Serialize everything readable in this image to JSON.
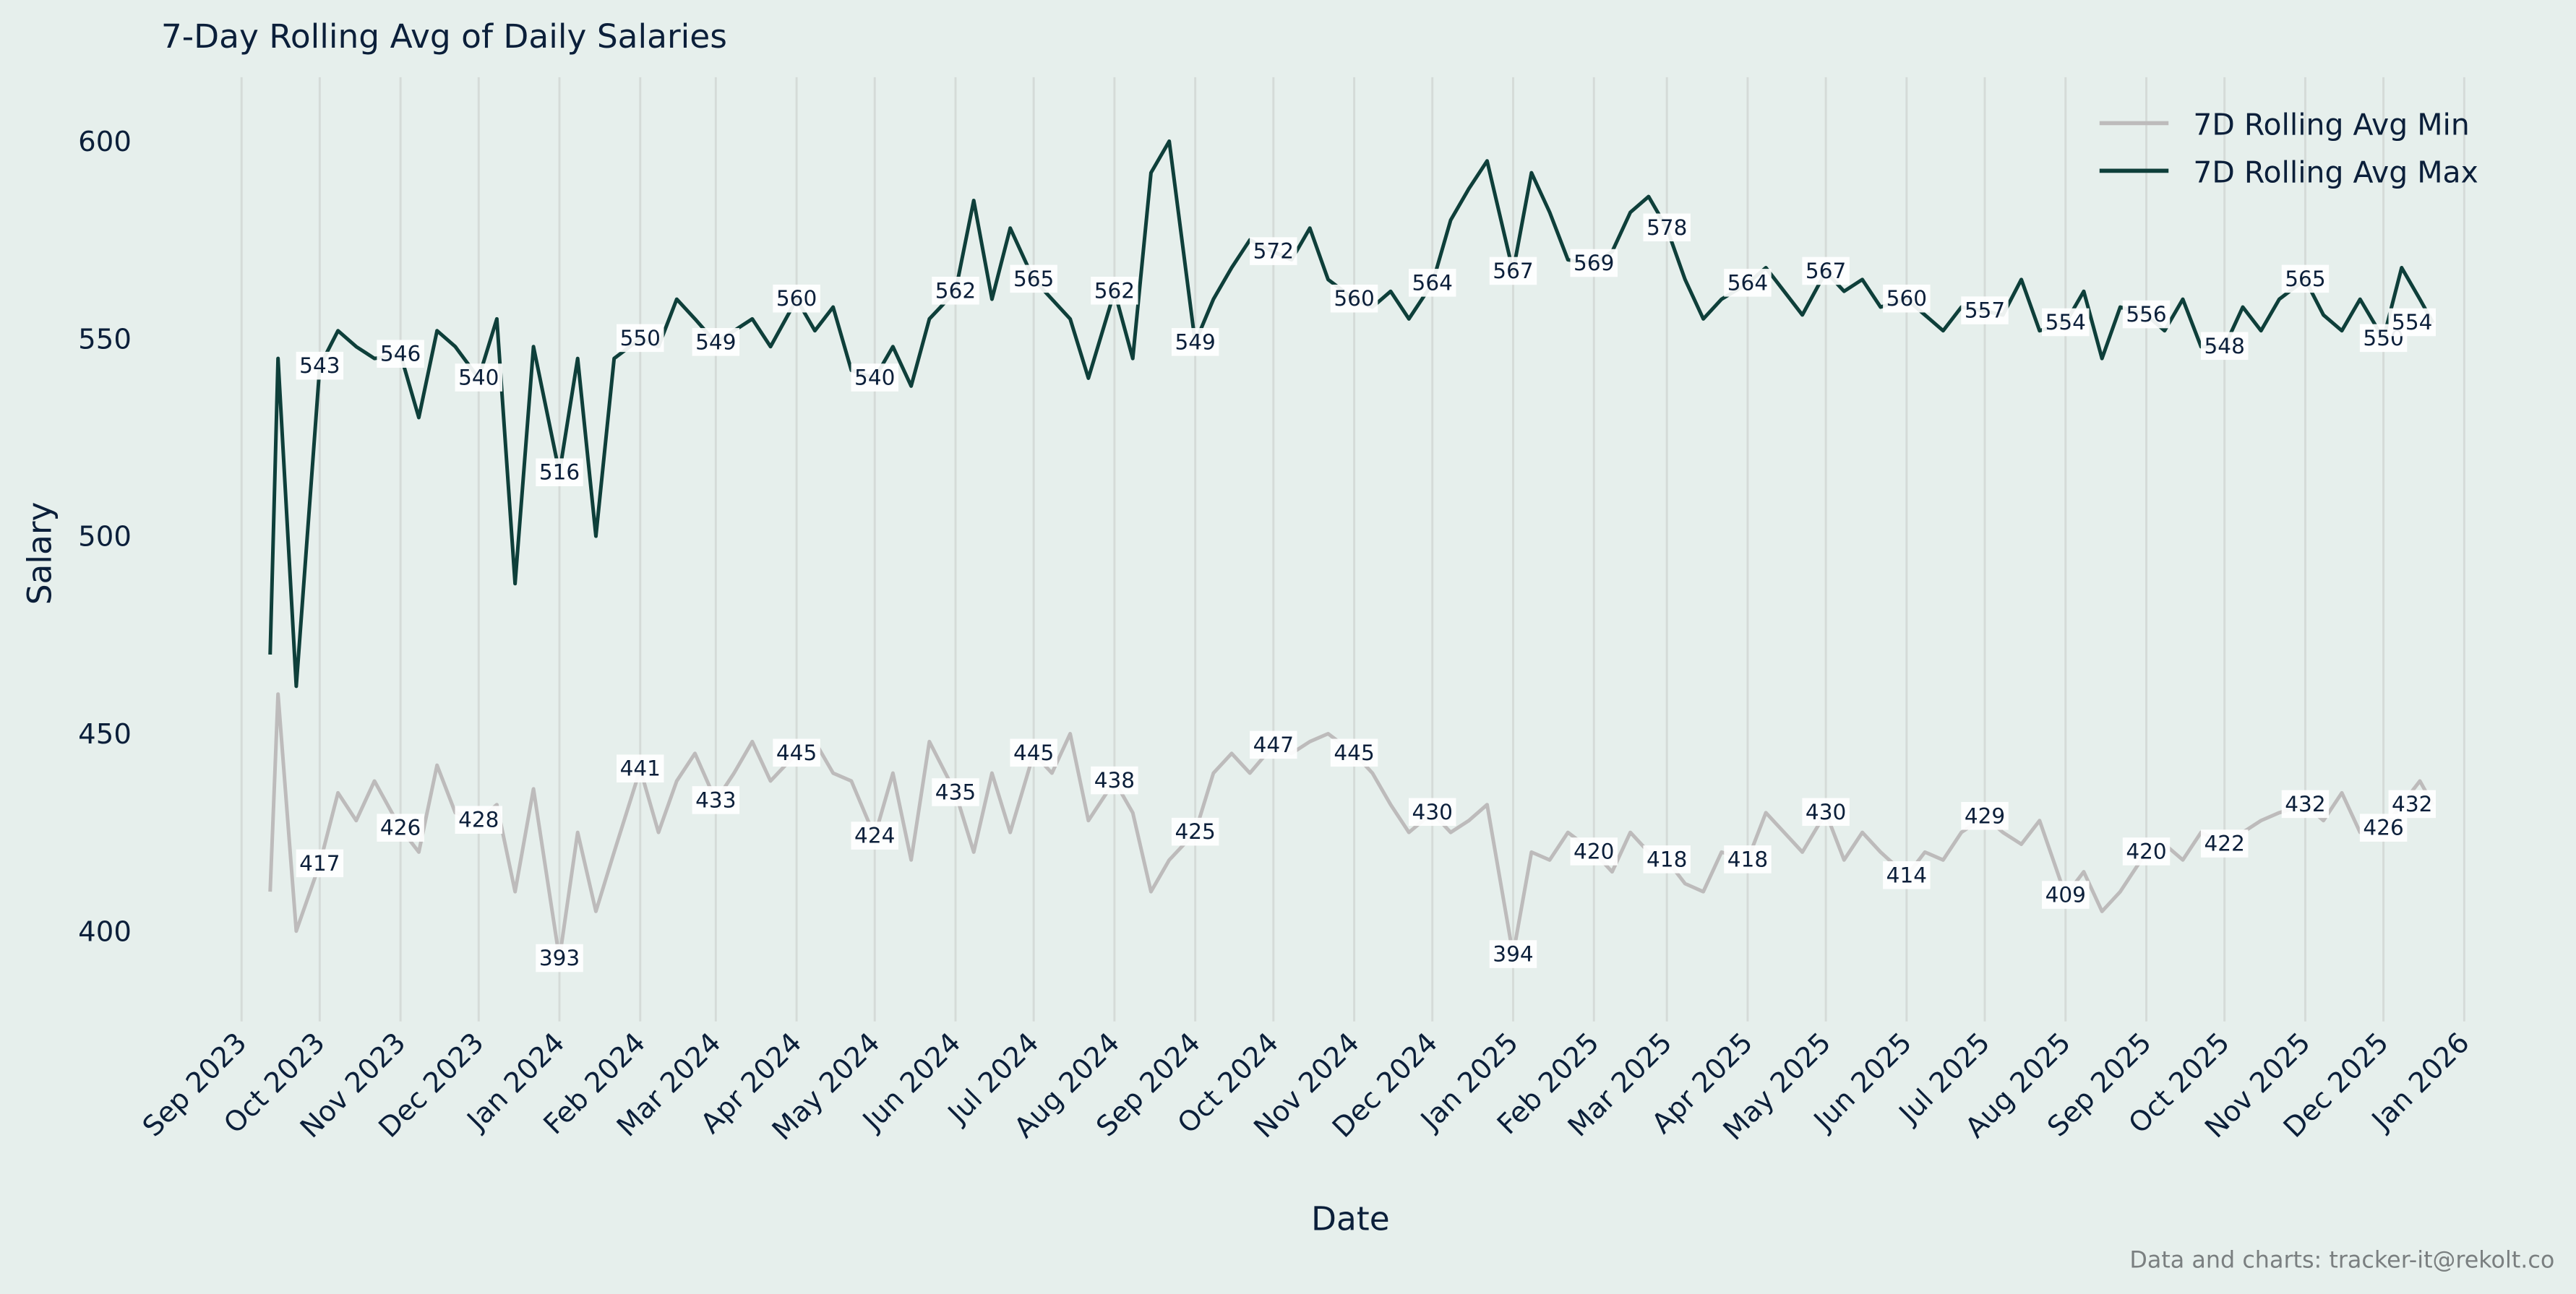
{
  "chart_data": {
    "type": "line",
    "title": "7-Day Rolling Avg of Daily Salaries",
    "xlabel": "Date",
    "ylabel": "Salary",
    "xlim": [
      "2023-08-22",
      "2026-01-10"
    ],
    "ylim": [
      378,
      616
    ],
    "grid": "vertical only",
    "legend_position": "top-right",
    "x_ticks": [
      "Sep 2023",
      "Oct 2023",
      "Nov 2023",
      "Dec 2023",
      "Jan 2024",
      "Feb 2024",
      "Mar 2024",
      "Apr 2024",
      "May 2024",
      "Jun 2024",
      "Jul 2024",
      "Aug 2024",
      "Sep 2024",
      "Oct 2024",
      "Nov 2024",
      "Dec 2024",
      "Jan 2025",
      "Feb 2025",
      "Mar 2025",
      "Apr 2025",
      "May 2025",
      "Jun 2025",
      "Jul 2025",
      "Aug 2025",
      "Sep 2025",
      "Oct 2025",
      "Nov 2025",
      "Dec 2025",
      "Jan 2026"
    ],
    "x_tick_dates": [
      "2023-09-01",
      "2023-10-01",
      "2023-11-01",
      "2023-12-01",
      "2024-01-01",
      "2024-02-01",
      "2024-03-01",
      "2024-04-01",
      "2024-05-01",
      "2024-06-01",
      "2024-07-01",
      "2024-08-01",
      "2024-09-01",
      "2024-10-01",
      "2024-11-01",
      "2024-12-01",
      "2025-01-01",
      "2025-02-01",
      "2025-03-01",
      "2025-04-01",
      "2025-05-01",
      "2025-06-01",
      "2025-07-01",
      "2025-08-01",
      "2025-09-01",
      "2025-10-01",
      "2025-11-01",
      "2025-12-01",
      "2026-01-01"
    ],
    "y_ticks": [
      400,
      450,
      500,
      550,
      600
    ],
    "x": [
      "2023-09-12",
      "2023-09-15",
      "2023-09-22",
      "2023-10-01",
      "2023-10-08",
      "2023-10-15",
      "2023-10-22",
      "2023-11-01",
      "2023-11-08",
      "2023-11-15",
      "2023-11-22",
      "2023-12-01",
      "2023-12-08",
      "2023-12-15",
      "2023-12-22",
      "2024-01-01",
      "2024-01-08",
      "2024-01-15",
      "2024-01-22",
      "2024-02-01",
      "2024-02-08",
      "2024-02-15",
      "2024-02-22",
      "2024-03-01",
      "2024-03-08",
      "2024-03-15",
      "2024-03-22",
      "2024-04-01",
      "2024-04-08",
      "2024-04-15",
      "2024-04-22",
      "2024-05-01",
      "2024-05-08",
      "2024-05-15",
      "2024-05-22",
      "2024-06-01",
      "2024-06-08",
      "2024-06-15",
      "2024-06-22",
      "2024-07-01",
      "2024-07-08",
      "2024-07-15",
      "2024-07-22",
      "2024-08-01",
      "2024-08-08",
      "2024-08-15",
      "2024-08-22",
      "2024-09-01",
      "2024-09-08",
      "2024-09-15",
      "2024-09-22",
      "2024-10-01",
      "2024-10-08",
      "2024-10-15",
      "2024-10-22",
      "2024-11-01",
      "2024-11-08",
      "2024-11-15",
      "2024-11-22",
      "2024-12-01",
      "2024-12-08",
      "2024-12-15",
      "2024-12-22",
      "2025-01-01",
      "2025-01-08",
      "2025-01-15",
      "2025-01-22",
      "2025-02-01",
      "2025-02-08",
      "2025-02-15",
      "2025-02-22",
      "2025-03-01",
      "2025-03-08",
      "2025-03-15",
      "2025-03-22",
      "2025-04-01",
      "2025-04-08",
      "2025-04-15",
      "2025-04-22",
      "2025-05-01",
      "2025-05-08",
      "2025-05-15",
      "2025-05-22",
      "2025-06-01",
      "2025-06-08",
      "2025-06-15",
      "2025-06-22",
      "2025-07-01",
      "2025-07-08",
      "2025-07-15",
      "2025-07-22",
      "2025-08-01",
      "2025-08-08",
      "2025-08-15",
      "2025-08-22",
      "2025-09-01",
      "2025-09-08",
      "2025-09-15",
      "2025-09-22",
      "2025-10-01",
      "2025-10-08",
      "2025-10-15",
      "2025-10-22",
      "2025-11-01",
      "2025-11-08",
      "2025-11-15",
      "2025-11-22",
      "2025-12-01",
      "2025-12-08",
      "2025-12-15",
      "2025-12-20"
    ],
    "series": [
      {
        "name": "7D Rolling Avg Min",
        "color": "#bdbbbb",
        "values": [
          410,
          460,
          400,
          417,
          435,
          428,
          438,
          426,
          420,
          442,
          430,
          428,
          432,
          410,
          436,
          393,
          425,
          405,
          420,
          441,
          425,
          438,
          445,
          433,
          440,
          448,
          438,
          445,
          448,
          440,
          438,
          424,
          440,
          418,
          448,
          435,
          420,
          440,
          425,
          445,
          440,
          450,
          428,
          438,
          430,
          410,
          418,
          425,
          440,
          445,
          440,
          447,
          445,
          448,
          450,
          445,
          440,
          432,
          425,
          430,
          425,
          428,
          432,
          394,
          420,
          418,
          425,
          420,
          415,
          425,
          420,
          418,
          412,
          410,
          420,
          418,
          430,
          425,
          420,
          430,
          418,
          425,
          420,
          414,
          420,
          418,
          425,
          429,
          425,
          422,
          428,
          409,
          415,
          405,
          410,
          420,
          422,
          418,
          425,
          422,
          425,
          428,
          430,
          432,
          428,
          435,
          425,
          426,
          432,
          438,
          432
        ]
      },
      {
        "name": "7D Rolling Avg Max",
        "color": "#0e3f3a",
        "values": [
          470,
          545,
          462,
          543,
          552,
          548,
          545,
          546,
          530,
          552,
          548,
          540,
          555,
          488,
          548,
          516,
          545,
          500,
          545,
          550,
          548,
          560,
          555,
          549,
          552,
          555,
          548,
          560,
          552,
          558,
          542,
          540,
          548,
          538,
          555,
          562,
          585,
          560,
          578,
          565,
          560,
          555,
          540,
          562,
          545,
          592,
          600,
          549,
          560,
          568,
          575,
          572,
          570,
          578,
          565,
          560,
          558,
          562,
          555,
          564,
          580,
          588,
          595,
          567,
          592,
          582,
          570,
          569,
          572,
          582,
          586,
          578,
          565,
          555,
          560,
          564,
          568,
          562,
          556,
          567,
          562,
          565,
          558,
          560,
          556,
          552,
          558,
          557,
          556,
          565,
          552,
          554,
          562,
          545,
          558,
          556,
          552,
          560,
          548,
          548,
          558,
          552,
          560,
          565,
          556,
          552,
          560,
          550,
          568,
          560,
          554
        ]
      }
    ],
    "annotations": {
      "min": [
        {
          "date": "2023-10-01",
          "label": "417"
        },
        {
          "date": "2023-11-01",
          "label": "426"
        },
        {
          "date": "2023-12-01",
          "label": "428"
        },
        {
          "date": "2024-01-01",
          "label": "393"
        },
        {
          "date": "2024-02-01",
          "label": "441"
        },
        {
          "date": "2024-03-01",
          "label": "433"
        },
        {
          "date": "2024-04-01",
          "label": "445"
        },
        {
          "date": "2024-05-01",
          "label": "424"
        },
        {
          "date": "2024-06-01",
          "label": "435"
        },
        {
          "date": "2024-07-01",
          "label": "445"
        },
        {
          "date": "2024-08-01",
          "label": "438"
        },
        {
          "date": "2024-09-01",
          "label": "425"
        },
        {
          "date": "2024-10-01",
          "label": "447"
        },
        {
          "date": "2024-11-01",
          "label": "445"
        },
        {
          "date": "2024-12-01",
          "label": "430"
        },
        {
          "date": "2025-01-01",
          "label": "394"
        },
        {
          "date": "2025-02-01",
          "label": "420"
        },
        {
          "date": "2025-03-01",
          "label": "418"
        },
        {
          "date": "2025-04-01",
          "label": "418"
        },
        {
          "date": "2025-05-01",
          "label": "430"
        },
        {
          "date": "2025-06-01",
          "label": "414"
        },
        {
          "date": "2025-07-01",
          "label": "429"
        },
        {
          "date": "2025-08-01",
          "label": "409"
        },
        {
          "date": "2025-09-01",
          "label": "420"
        },
        {
          "date": "2025-10-01",
          "label": "422"
        },
        {
          "date": "2025-11-01",
          "label": "432"
        },
        {
          "date": "2025-12-01",
          "label": "426"
        },
        {
          "date": "2025-12-12",
          "label": "432"
        }
      ],
      "max": [
        {
          "date": "2023-10-01",
          "label": "543"
        },
        {
          "date": "2023-11-01",
          "label": "546"
        },
        {
          "date": "2023-12-01",
          "label": "540"
        },
        {
          "date": "2024-01-01",
          "label": "516"
        },
        {
          "date": "2024-02-01",
          "label": "550"
        },
        {
          "date": "2024-03-01",
          "label": "549"
        },
        {
          "date": "2024-04-01",
          "label": "560"
        },
        {
          "date": "2024-05-01",
          "label": "540"
        },
        {
          "date": "2024-06-01",
          "label": "562"
        },
        {
          "date": "2024-07-01",
          "label": "565"
        },
        {
          "date": "2024-08-01",
          "label": "562"
        },
        {
          "date": "2024-09-01",
          "label": "549"
        },
        {
          "date": "2024-10-01",
          "label": "572"
        },
        {
          "date": "2024-11-01",
          "label": "560"
        },
        {
          "date": "2024-12-01",
          "label": "564"
        },
        {
          "date": "2025-01-01",
          "label": "567"
        },
        {
          "date": "2025-02-01",
          "label": "569"
        },
        {
          "date": "2025-03-01",
          "label": "578"
        },
        {
          "date": "2025-04-01",
          "label": "564"
        },
        {
          "date": "2025-05-01",
          "label": "567"
        },
        {
          "date": "2025-06-01",
          "label": "560"
        },
        {
          "date": "2025-07-01",
          "label": "557"
        },
        {
          "date": "2025-08-01",
          "label": "554"
        },
        {
          "date": "2025-09-01",
          "label": "556"
        },
        {
          "date": "2025-10-01",
          "label": "548"
        },
        {
          "date": "2025-11-01",
          "label": "565"
        },
        {
          "date": "2025-12-01",
          "label": "550"
        },
        {
          "date": "2025-12-12",
          "label": "554"
        }
      ]
    }
  },
  "footer": {
    "credit": "Data and charts: tracker-it@rekolt.co"
  }
}
